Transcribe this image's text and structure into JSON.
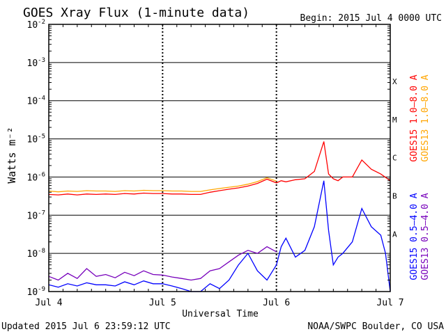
{
  "chart_data": {
    "type": "line",
    "title": "GOES Xray Flux (1-minute data)",
    "begin_label": "Begin:  2015 Jul 4 0000 UTC",
    "xlabel": "Universal Time",
    "ylabel": "Watts m⁻²",
    "y_scale": "log",
    "ylim": [
      1e-09,
      0.01
    ],
    "y_ticks": [
      {
        "base": "10",
        "exp": "-9"
      },
      {
        "base": "10",
        "exp": "-8"
      },
      {
        "base": "10",
        "exp": "-7"
      },
      {
        "base": "10",
        "exp": "-6"
      },
      {
        "base": "10",
        "exp": "-5"
      },
      {
        "base": "10",
        "exp": "-4"
      },
      {
        "base": "10",
        "exp": "-3"
      },
      {
        "base": "10",
        "exp": "-2"
      }
    ],
    "x_ticks": [
      "Jul 4",
      "Jul 5",
      "Jul 6",
      "Jul 7"
    ],
    "xlim_hours": [
      0,
      72
    ],
    "flare_classes": [
      "A",
      "B",
      "C",
      "M",
      "X"
    ],
    "grid": true,
    "legend_placement": "right",
    "series": [
      {
        "name": "GOES15 1.0–8.0 A",
        "color": "#ff0000",
        "hours": [
          0,
          2,
          4,
          6,
          8,
          10,
          12,
          14,
          16,
          18,
          20,
          22,
          24,
          26,
          28,
          30,
          32,
          34,
          36,
          38,
          40,
          42,
          44,
          46,
          48,
          49,
          50,
          52,
          54,
          56,
          58,
          59,
          60,
          61,
          62,
          64,
          66,
          68,
          70,
          72
        ],
        "values": [
          3.5e-07,
          3.4e-07,
          3.6e-07,
          3.4e-07,
          3.6e-07,
          3.5e-07,
          3.6e-07,
          3.5e-07,
          3.7e-07,
          3.6e-07,
          3.8e-07,
          3.7e-07,
          3.7e-07,
          3.6e-07,
          3.6e-07,
          3.5e-07,
          3.5e-07,
          4e-07,
          4.4e-07,
          4.8e-07,
          5.2e-07,
          5.8e-07,
          6.8e-07,
          8.8e-07,
          7e-07,
          8e-07,
          7.5e-07,
          8.5e-07,
          9e-07,
          1.4e-06,
          8.5e-06,
          1.2e-06,
          9e-07,
          8e-07,
          1e-06,
          1e-06,
          2.8e-06,
          1.6e-06,
          1.2e-06,
          8e-07
        ]
      },
      {
        "name": "GOES13 1.0–8.0 A",
        "color": "#ffa500",
        "hours": [
          0,
          2,
          4,
          6,
          8,
          10,
          12,
          14,
          16,
          18,
          20,
          22,
          24,
          26,
          28,
          30,
          32,
          34,
          36,
          38,
          40,
          42,
          44,
          46,
          48
        ],
        "values": [
          4.3e-07,
          4.1e-07,
          4.3e-07,
          4.2e-07,
          4.4e-07,
          4.3e-07,
          4.3e-07,
          4.2e-07,
          4.4e-07,
          4.3e-07,
          4.5e-07,
          4.4e-07,
          4.4e-07,
          4.3e-07,
          4.3e-07,
          4.2e-07,
          4.2e-07,
          4.6e-07,
          5e-07,
          5.4e-07,
          5.8e-07,
          6.5e-07,
          7.6e-07,
          9.6e-07,
          7.8e-07
        ]
      },
      {
        "name": "GOES15 0.5–4.0 A",
        "color": "#0000ff",
        "hours": [
          0,
          2,
          4,
          6,
          8,
          10,
          12,
          14,
          16,
          18,
          20,
          22,
          24,
          26,
          28,
          30,
          32,
          34,
          36,
          38,
          40,
          42,
          44,
          46,
          48,
          49,
          50,
          52,
          54,
          56,
          58,
          59,
          60,
          61,
          62,
          64,
          66,
          68,
          70,
          71,
          72
        ],
        "values": [
          1.5e-09,
          1.3e-09,
          1.6e-09,
          1.4e-09,
          1.7e-09,
          1.5e-09,
          1.5e-09,
          1.4e-09,
          1.8e-09,
          1.5e-09,
          1.9e-09,
          1.6e-09,
          1.6e-09,
          1.4e-09,
          1.2e-09,
          1e-09,
          1e-09,
          1.6e-09,
          1.2e-09,
          2e-09,
          5e-09,
          1e-08,
          3.5e-09,
          2e-09,
          5e-09,
          1.5e-08,
          2.5e-08,
          8e-09,
          1.2e-08,
          5e-08,
          8e-07,
          4e-08,
          5e-09,
          8e-09,
          1e-08,
          2e-08,
          1.5e-07,
          5e-08,
          3e-08,
          1e-08,
          1e-09
        ]
      },
      {
        "name": "GOES13 0.5–4.0 A",
        "color": "#7700bb",
        "hours": [
          0,
          2,
          4,
          6,
          8,
          10,
          12,
          14,
          16,
          18,
          20,
          22,
          24,
          26,
          28,
          30,
          32,
          34,
          36,
          38,
          40,
          42,
          44,
          46,
          48
        ],
        "values": [
          2.5e-09,
          2e-09,
          3e-09,
          2.2e-09,
          4e-09,
          2.5e-09,
          2.8e-09,
          2.3e-09,
          3.2e-09,
          2.6e-09,
          3.5e-09,
          2.8e-09,
          2.7e-09,
          2.4e-09,
          2.2e-09,
          2e-09,
          2.2e-09,
          3.5e-09,
          4e-09,
          6e-09,
          9e-09,
          1.2e-08,
          1e-08,
          1.5e-08,
          1.1e-08
        ]
      }
    ]
  },
  "footer": {
    "updated": "Updated 2015 Jul  6 23:59:12 UTC",
    "credit": "NOAA/SWPC Boulder, CO USA"
  }
}
